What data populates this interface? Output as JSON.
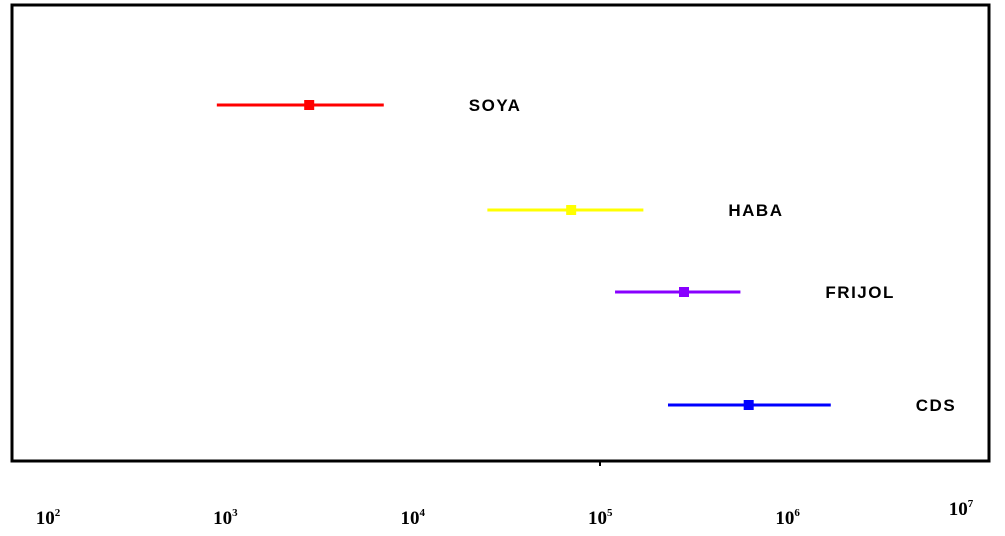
{
  "chart_data": {
    "type": "scatter",
    "x_scale": "log",
    "xlim": [
      100,
      10000000
    ],
    "grid": false,
    "x_tick_labels": [
      {
        "value": 100,
        "base": "10",
        "exp": "2"
      },
      {
        "value": 1000,
        "base": "10",
        "exp": "3"
      },
      {
        "value": 10000,
        "base": "10",
        "exp": "4"
      },
      {
        "value": 100000,
        "base": "10",
        "exp": "5"
      },
      {
        "value": 1000000,
        "base": "10",
        "exp": "6"
      },
      {
        "value": 10000000,
        "base": "10",
        "exp": "7"
      }
    ],
    "series": [
      {
        "name": "SOYA",
        "center": 2800,
        "low": 900,
        "high": 7000,
        "color": "#ff0000"
      },
      {
        "name": "HABA",
        "center": 70000,
        "low": 25000,
        "high": 170000,
        "color": "#ffff00"
      },
      {
        "name": "FRIJOL",
        "center": 280000,
        "low": 120000,
        "high": 560000,
        "color": "#8800ff"
      },
      {
        "name": "CDS",
        "center": 620000,
        "low": 230000,
        "high": 1700000,
        "color": "#0000ff"
      }
    ]
  }
}
